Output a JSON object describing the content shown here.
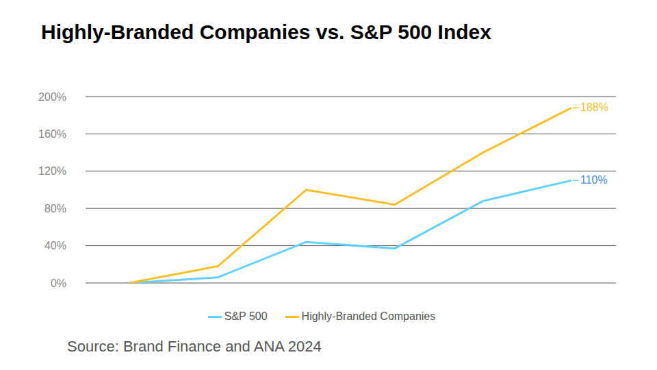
{
  "chart_data": {
    "type": "line",
    "title": "Highly-Branded Companies vs. S&P 500 Index",
    "source": "Source: Brand Finance and ANA 2024",
    "categories": [
      null,
      null,
      null,
      null,
      null,
      null
    ],
    "series": [
      {
        "name": "S&P 500",
        "color": "#62d0fa",
        "values": [
          0,
          6,
          44,
          37,
          88,
          110
        ],
        "value_labels": [
          null,
          null,
          null,
          null,
          null,
          "110%"
        ]
      },
      {
        "name": "Highly-Branded Companies",
        "color": "#f6c026",
        "values": [
          0,
          18,
          100,
          84,
          140,
          188
        ],
        "value_labels": [
          null,
          null,
          null,
          null,
          null,
          "188%"
        ]
      }
    ],
    "ylim": [
      0,
      200
    ],
    "yticks": [
      {
        "value": 0,
        "label": "0%"
      },
      {
        "value": 40,
        "label": "40%"
      },
      {
        "value": 80,
        "label": "80%"
      },
      {
        "value": 120,
        "label": "120%"
      },
      {
        "value": 160,
        "label": "160%"
      },
      {
        "value": 200,
        "label": "200%"
      }
    ],
    "grid": true,
    "data_labels": true
  }
}
